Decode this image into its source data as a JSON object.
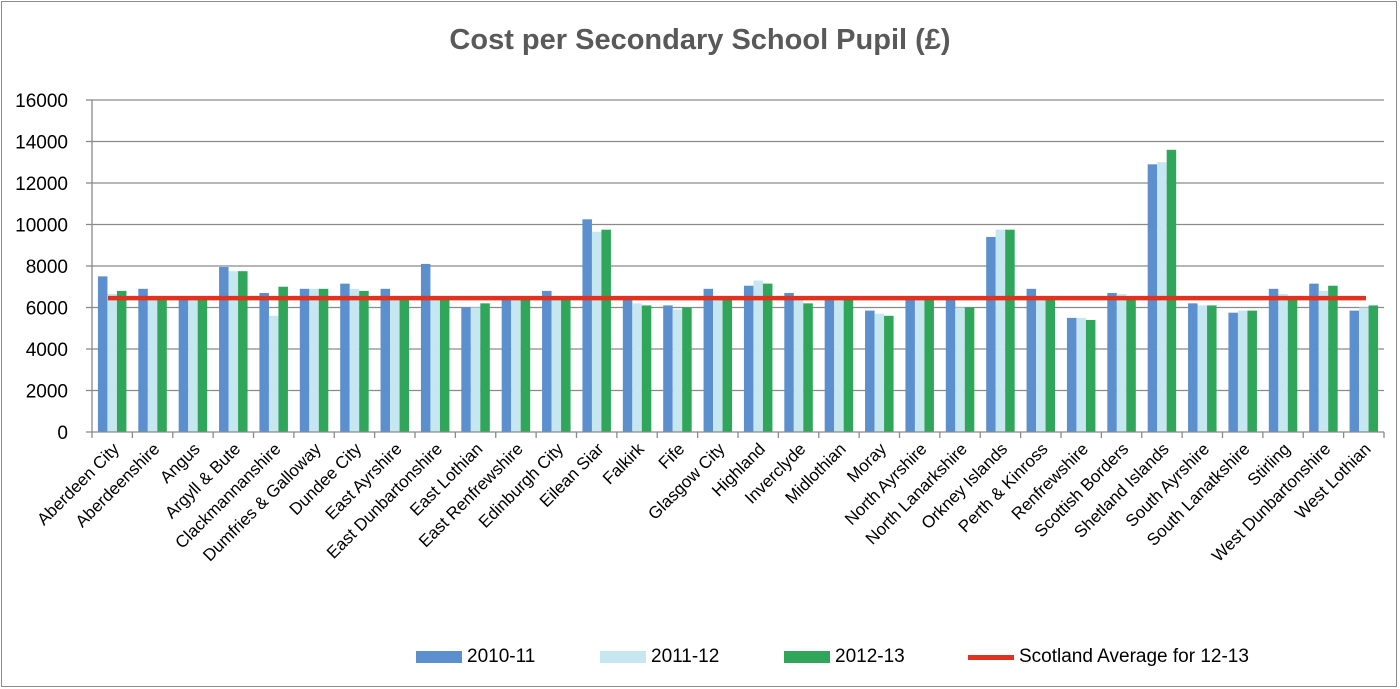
{
  "chart_data": {
    "type": "bar",
    "title": "Cost per Secondary School Pupil (£)",
    "xlabel": "",
    "ylabel": "",
    "ylim": [
      0,
      16000
    ],
    "yticks": [
      0,
      2000,
      4000,
      6000,
      8000,
      10000,
      12000,
      14000,
      16000
    ],
    "grid": true,
    "legend_position": "bottom",
    "categories": [
      "Aberdeen City",
      "Aberdeenshire",
      "Angus",
      "Argyll & Bute",
      "Clackmannanshire",
      "Dumfries & Galloway",
      "Dundee City",
      "East Ayrshire",
      "East Dunbartonshire",
      "East Lothian",
      "East Renfrewshire",
      "Edinburgh City",
      "Eilean Siar",
      "Falkirk",
      "Fife",
      "Glasgow City",
      "Highland",
      "Inverclyde",
      "Midlothian",
      "Moray",
      "North Ayrshire",
      "North Lanarkshire",
      "Orkney Islands",
      "Perth & Kinross",
      "Renfrewshire",
      "Scottish Borders",
      "Shetland Islands",
      "South Ayrshire",
      "South Lanatkshire",
      "Stirling",
      "West Dunbartonshire",
      "West Lothian"
    ],
    "series": [
      {
        "name": "2010-11",
        "color": "#5b8fcd",
        "values": [
          7500,
          6900,
          6400,
          7950,
          6700,
          6900,
          7150,
          6900,
          8100,
          6000,
          6500,
          6800,
          10250,
          6400,
          6100,
          6900,
          7050,
          6700,
          6400,
          5850,
          6450,
          6450,
          9400,
          6900,
          5500,
          6700,
          12900,
          6200,
          5750,
          6900,
          7150,
          5850
        ]
      },
      {
        "name": "2011-12",
        "color": "#c6e6f0",
        "values": [
          6650,
          6500,
          6400,
          7750,
          5600,
          6900,
          6900,
          6500,
          6450,
          6000,
          6400,
          6400,
          9650,
          6200,
          5900,
          6400,
          7300,
          6400,
          6400,
          5700,
          6450,
          6000,
          9750,
          6450,
          5500,
          6650,
          13000,
          6100,
          5850,
          6650,
          6800,
          6000
        ]
      },
      {
        "name": "2012-13",
        "color": "#2fa65a",
        "values": [
          6800,
          6500,
          6400,
          7750,
          7000,
          6900,
          6800,
          6500,
          6450,
          6200,
          6400,
          6500,
          9750,
          6100,
          6000,
          6400,
          7150,
          6200,
          6400,
          5600,
          6450,
          6000,
          9750,
          6450,
          5400,
          6550,
          13600,
          6100,
          5850,
          6500,
          7050,
          6100
        ]
      }
    ],
    "reference_line": {
      "name": "Scotland Average for 12-13",
      "value": 6450,
      "color": "#e1321f"
    }
  }
}
